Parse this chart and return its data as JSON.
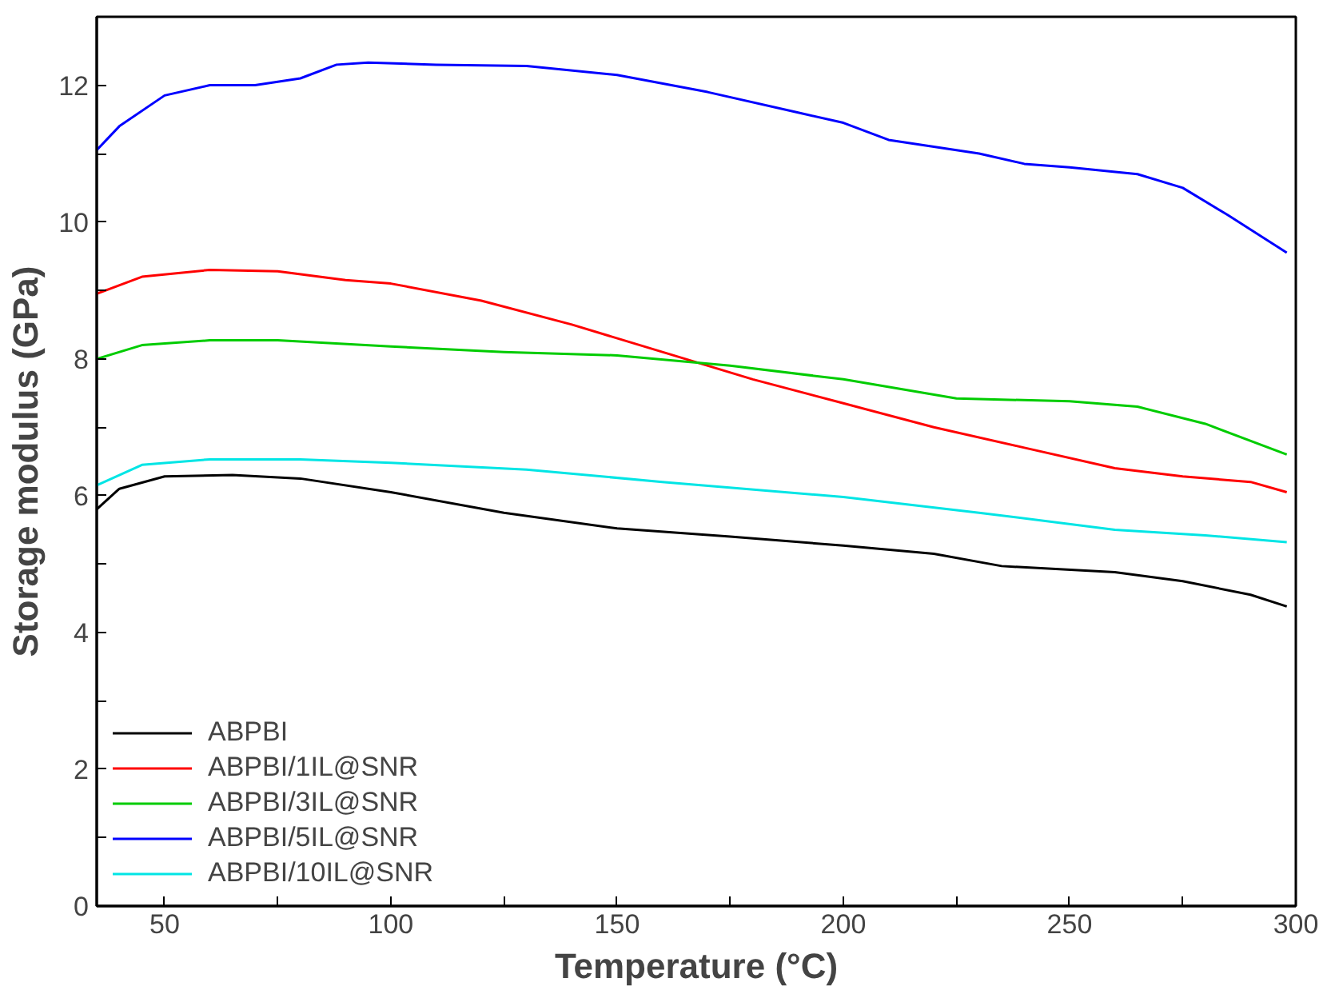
{
  "chart_data": {
    "type": "line",
    "xlabel": "Temperature (°C)",
    "ylabel": "Storage modulus (GPa)",
    "xlim": [
      35,
      300
    ],
    "ylim": [
      0,
      13
    ],
    "xticks": [
      50,
      {
        "value": 75,
        "label": null
      },
      100,
      {
        "value": 125,
        "label": null
      },
      150,
      {
        "value": 175,
        "label": null
      },
      200,
      {
        "value": 225,
        "label": null
      },
      250,
      {
        "value": 275,
        "label": null
      },
      300
    ],
    "yticks": [
      0,
      {
        "value": 1,
        "label": null
      },
      2,
      {
        "value": 3,
        "label": null
      },
      4,
      {
        "value": 5,
        "label": null
      },
      6,
      {
        "value": 7,
        "label": null
      },
      8,
      {
        "value": 9,
        "label": null
      },
      10,
      {
        "value": 11,
        "label": null
      },
      12
    ],
    "grid": false,
    "legend": "bottom left",
    "marker": "none",
    "line_style": "solid",
    "series": [
      {
        "name": "ABPBI",
        "color": "#000000",
        "x": [
          35,
          40,
          50,
          65,
          80,
          100,
          125,
          150,
          175,
          200,
          220,
          235,
          260,
          275,
          290,
          298
        ],
        "values": [
          5.8,
          6.1,
          6.28,
          6.3,
          6.25,
          6.05,
          5.75,
          5.52,
          5.4,
          5.27,
          5.15,
          4.97,
          4.88,
          4.75,
          4.55,
          4.38
        ]
      },
      {
        "name": "ABPBI/1IL@SNR",
        "color": "#ff0000",
        "x": [
          35,
          45,
          60,
          75,
          90,
          100,
          120,
          140,
          160,
          180,
          200,
          220,
          240,
          260,
          275,
          290,
          298
        ],
        "values": [
          8.95,
          9.2,
          9.3,
          9.28,
          9.15,
          9.1,
          8.85,
          8.5,
          8.1,
          7.7,
          7.35,
          7.0,
          6.7,
          6.4,
          6.28,
          6.2,
          6.05
        ]
      },
      {
        "name": "ABPBI/3IL@SNR",
        "color": "#00cc00",
        "x": [
          35,
          45,
          60,
          75,
          100,
          125,
          150,
          175,
          200,
          225,
          250,
          265,
          280,
          298
        ],
        "values": [
          8.0,
          8.2,
          8.27,
          8.27,
          8.18,
          8.1,
          8.05,
          7.9,
          7.7,
          7.42,
          7.38,
          7.3,
          7.05,
          6.6
        ]
      },
      {
        "name": "ABPBI/5IL@SNR",
        "color": "#0000ff",
        "x": [
          35,
          40,
          50,
          60,
          70,
          80,
          88,
          95,
          110,
          130,
          150,
          170,
          190,
          200,
          210,
          230,
          240,
          250,
          265,
          275,
          285,
          298
        ],
        "values": [
          11.05,
          11.4,
          11.85,
          12.0,
          12.0,
          12.1,
          12.3,
          12.33,
          12.3,
          12.28,
          12.15,
          11.9,
          11.6,
          11.45,
          11.2,
          11.0,
          10.85,
          10.8,
          10.7,
          10.5,
          10.1,
          9.55
        ]
      },
      {
        "name": "ABPBI/10IL@SNR",
        "color": "#00e5e5",
        "x": [
          35,
          45,
          60,
          80,
          100,
          130,
          160,
          200,
          230,
          260,
          280,
          298
        ],
        "values": [
          6.15,
          6.45,
          6.53,
          6.53,
          6.48,
          6.38,
          6.2,
          5.98,
          5.75,
          5.5,
          5.42,
          5.32
        ]
      }
    ]
  }
}
